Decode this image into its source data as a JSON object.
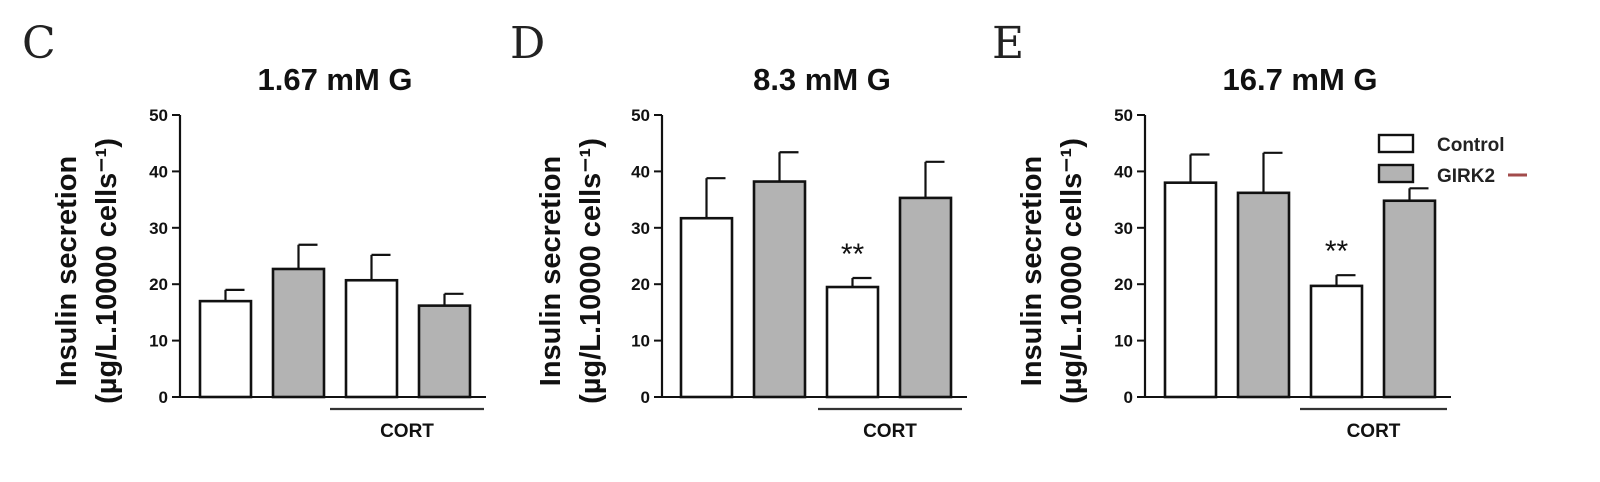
{
  "colors": {
    "control": "#ffffff",
    "girk2": "#b3b3b3",
    "stroke": "#111111",
    "girk2_marker": "#a24b4b"
  },
  "legend": {
    "control_label": "Control",
    "girk2_label": "GIRK2",
    "placement": "top-right of panel E"
  },
  "chart_data": [
    {
      "type": "bar",
      "panel": "C",
      "title": "1.67 mM G",
      "ylabel": "Insulin secretion",
      "ylabel_unit": "(µg/L.10000 cells⁻¹)",
      "ylim": [
        0,
        50
      ],
      "yticks": [
        0,
        10,
        20,
        30,
        40,
        50
      ],
      "group_label": "CORT",
      "bars": [
        {
          "series": "Control",
          "value": 17,
          "error": 2
        },
        {
          "series": "GIRK2",
          "value": 22.7,
          "error": 4.3
        },
        {
          "series": "Control",
          "value": 20.7,
          "error": 4.5,
          "cort": true
        },
        {
          "series": "GIRK2",
          "value": 16.2,
          "error": 2.1,
          "cort": true
        }
      ],
      "significance": []
    },
    {
      "type": "bar",
      "panel": "D",
      "title": "8.3 mM G",
      "ylabel": "Insulin secretion",
      "ylabel_unit": "(µg/L.10000 cells⁻¹)",
      "ylim": [
        0,
        50
      ],
      "yticks": [
        0,
        10,
        20,
        30,
        40,
        50
      ],
      "group_label": "CORT",
      "bars": [
        {
          "series": "Control",
          "value": 31.7,
          "error": 7.1
        },
        {
          "series": "GIRK2",
          "value": 38.2,
          "error": 5.2
        },
        {
          "series": "Control",
          "value": 19.5,
          "error": 1.6,
          "cort": true
        },
        {
          "series": "GIRK2",
          "value": 35.3,
          "error": 6.4,
          "cort": true
        }
      ],
      "significance": [
        {
          "bar": 2,
          "label": "**"
        }
      ]
    },
    {
      "type": "bar",
      "panel": "E",
      "title": "16.7 mM G",
      "ylabel": "Insulin secretion",
      "ylabel_unit": "(µg/L.10000 cells⁻¹)",
      "ylim": [
        0,
        50
      ],
      "yticks": [
        0,
        10,
        20,
        30,
        40,
        50
      ],
      "group_label": "CORT",
      "bars": [
        {
          "series": "Control",
          "value": 38,
          "error": 5
        },
        {
          "series": "GIRK2",
          "value": 36.2,
          "error": 7.1
        },
        {
          "series": "Control",
          "value": 19.7,
          "error": 1.9,
          "cort": true
        },
        {
          "series": "GIRK2",
          "value": 34.8,
          "error": 2.2,
          "cort": true
        }
      ],
      "significance": [
        {
          "bar": 2,
          "label": "**"
        }
      ]
    }
  ]
}
